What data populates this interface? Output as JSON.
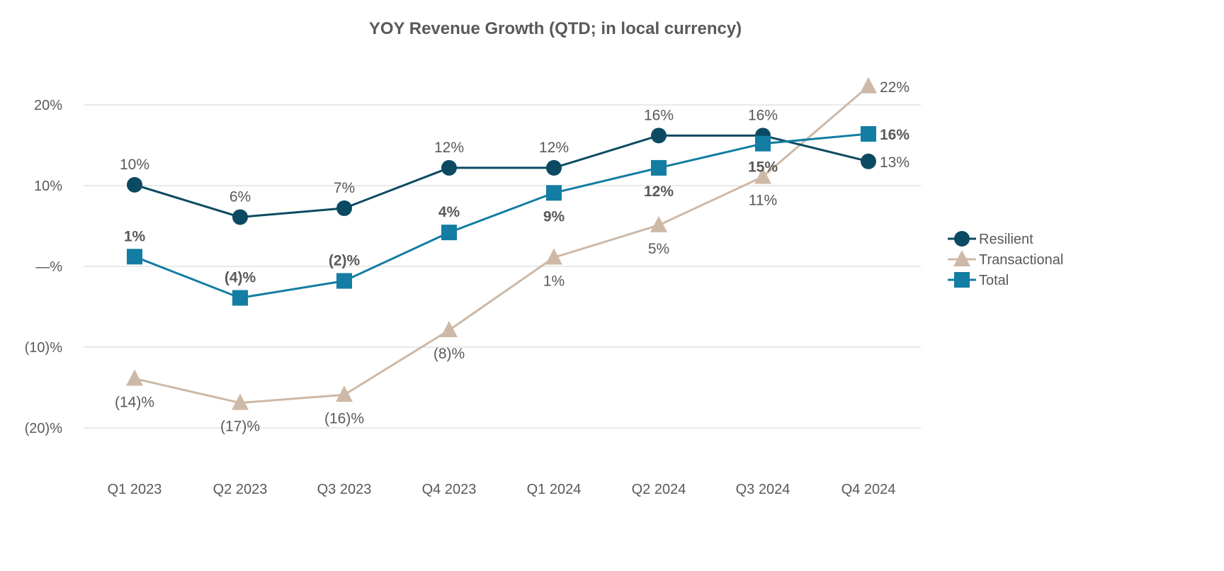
{
  "chart_data": {
    "type": "line",
    "title": "YOY Revenue Growth (QTD; in local currency)",
    "xlabel": "",
    "ylabel": "",
    "categories": [
      "Q1 2023",
      "Q2 2023",
      "Q3 2023",
      "Q4 2023",
      "Q1 2024",
      "Q2 2024",
      "Q3 2024",
      "Q4 2024"
    ],
    "ylim": [
      -25,
      25
    ],
    "yticks": [
      20,
      10,
      0,
      -10,
      -20
    ],
    "ytick_labels": [
      "20%",
      "10%",
      "—%",
      "(10)%",
      "(20)%"
    ],
    "grid": true,
    "legend_position": "right",
    "series": [
      {
        "name": "Resilient",
        "color": "#0b4a62",
        "marker": "circle",
        "values": [
          10.1,
          6.1,
          7.2,
          12.2,
          12.2,
          16.2,
          16.2,
          13.0
        ],
        "labels": [
          "10%",
          "6%",
          "7%",
          "12%",
          "12%",
          "16%",
          "16%",
          "13%"
        ],
        "labels_bold": false
      },
      {
        "name": "Transactional",
        "color": "#cdb9a7",
        "marker": "triangle",
        "values": [
          -13.9,
          -16.9,
          -15.9,
          -7.9,
          1.1,
          5.1,
          11.1,
          22.3
        ],
        "labels": [
          "(14)%",
          "(17)%",
          "(16)%",
          "(8)%",
          "1%",
          "5%",
          "11%",
          "22%"
        ],
        "labels_bold": false
      },
      {
        "name": "Total",
        "color": "#137da3",
        "marker": "square",
        "values": [
          1.2,
          -3.9,
          -1.8,
          4.2,
          9.1,
          12.2,
          15.2,
          16.4
        ],
        "labels": [
          "1%",
          "(4)%",
          "(2)%",
          "4%",
          "9%",
          "12%",
          "15%",
          "16%"
        ],
        "labels_bold": true
      }
    ]
  }
}
